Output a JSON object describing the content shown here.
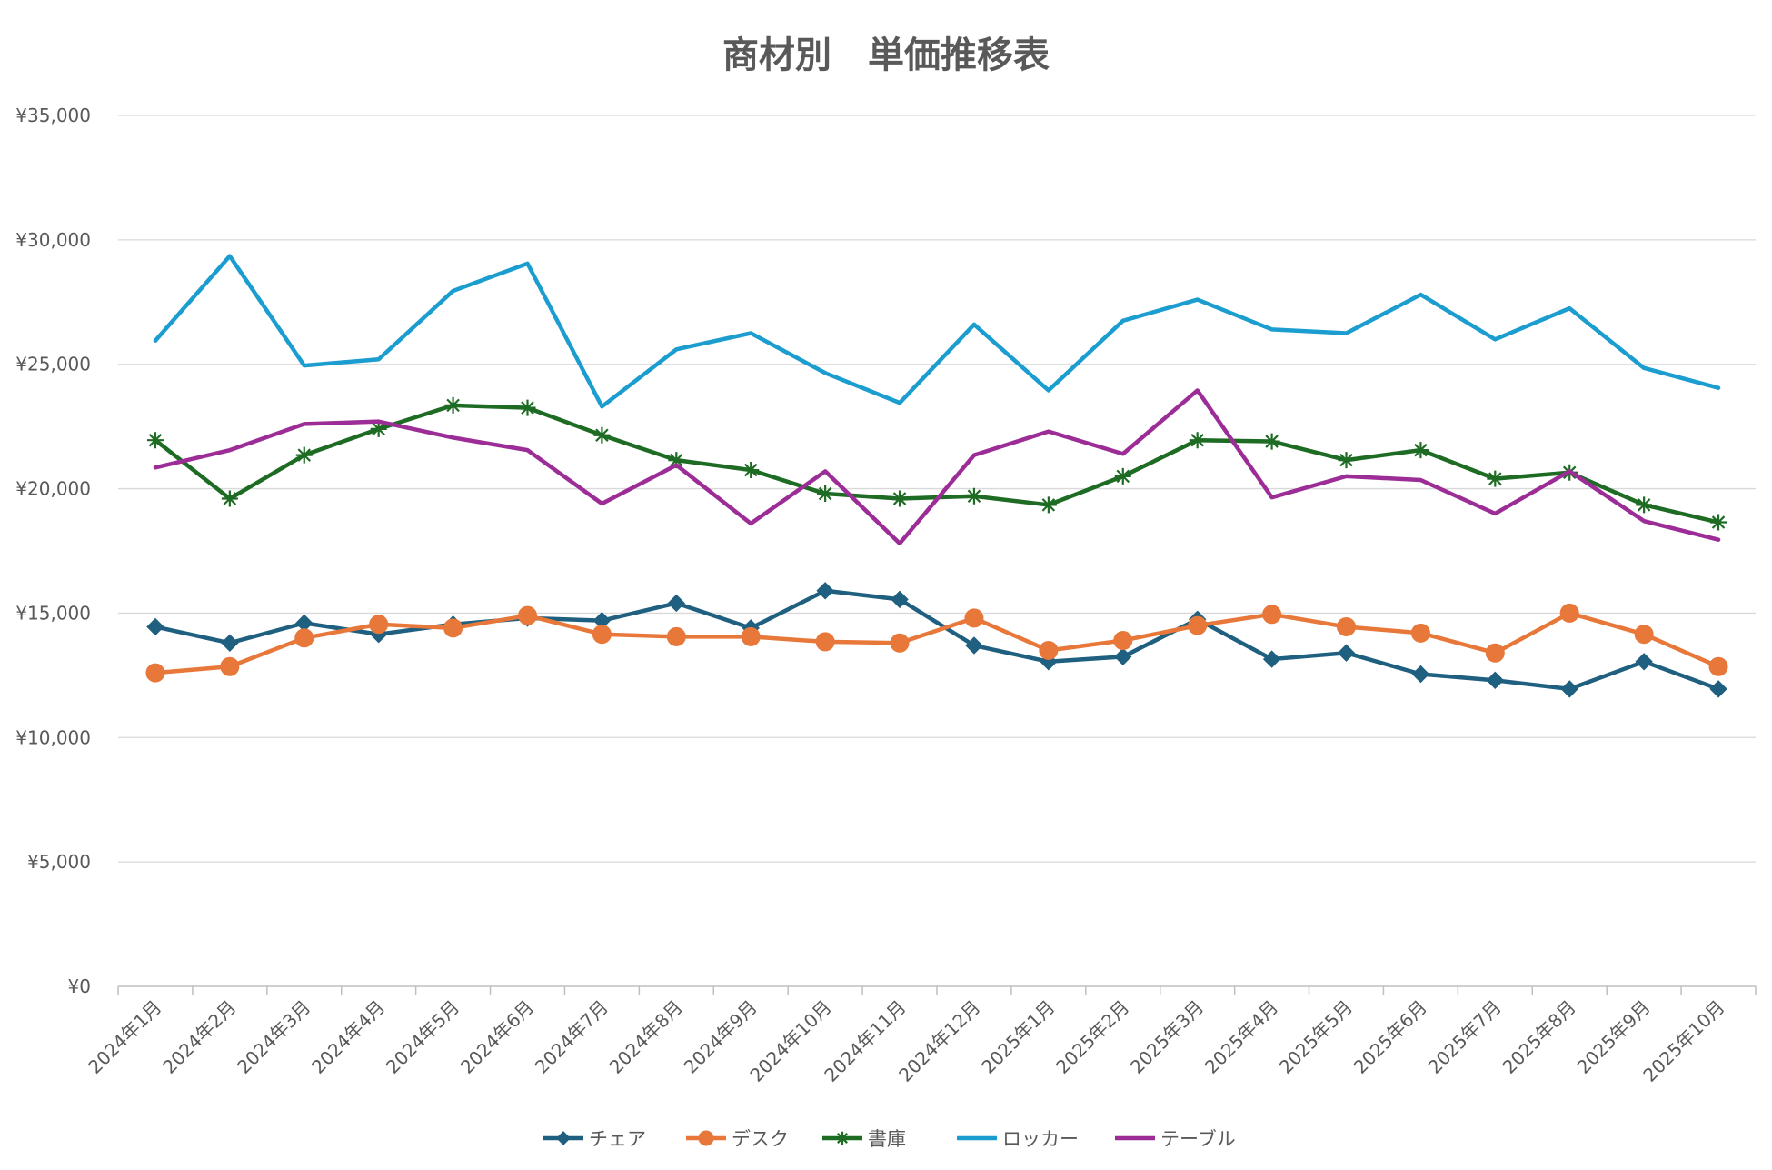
{
  "chart_data": {
    "type": "line",
    "title": "商材別　単価推移表",
    "xlabel": "",
    "ylabel": "",
    "categories": [
      "2024年1月",
      "2024年2月",
      "2024年3月",
      "2024年4月",
      "2024年5月",
      "2024年6月",
      "2024年7月",
      "2024年8月",
      "2024年9月",
      "2024年10月",
      "2024年11月",
      "2024年12月",
      "2025年1月",
      "2025年2月",
      "2025年3月",
      "2025年4月",
      "2025年5月",
      "2025年6月",
      "2025年7月",
      "2025年8月",
      "2025年9月",
      "2025年10月"
    ],
    "ylim": [
      0,
      35000
    ],
    "yticks": [
      0,
      5000,
      10000,
      15000,
      20000,
      25000,
      30000,
      35000
    ],
    "ytick_labels": [
      "¥0",
      "¥5,000",
      "¥10,000",
      "¥15,000",
      "¥20,000",
      "¥25,000",
      "¥30,000",
      "¥35,000"
    ],
    "grid": true,
    "legend_position": "bottom",
    "series": [
      {
        "name": "チェア",
        "color": "#1f5f7f",
        "marker": "diamond",
        "values": [
          14450,
          13800,
          14600,
          14150,
          14550,
          14800,
          14700,
          15400,
          14400,
          15900,
          15550,
          13700,
          13050,
          13250,
          14750,
          13150,
          13400,
          12550,
          12300,
          11950,
          13050,
          11950
        ]
      },
      {
        "name": "デスク",
        "color": "#e8773a",
        "marker": "circle",
        "values": [
          12600,
          12850,
          14000,
          14550,
          14400,
          14900,
          14150,
          14050,
          14050,
          13850,
          13800,
          14800,
          13500,
          13900,
          14500,
          14950,
          14450,
          14200,
          13400,
          15000,
          14150,
          12850
        ]
      },
      {
        "name": "書庫",
        "color": "#1e6b24",
        "marker": "star",
        "values": [
          21950,
          19600,
          21350,
          22400,
          23350,
          23250,
          22150,
          21150,
          20750,
          19800,
          19600,
          19700,
          19350,
          20500,
          21950,
          21900,
          21150,
          21550,
          20400,
          20650,
          19350,
          18650
        ]
      },
      {
        "name": "ロッカー",
        "color": "#1b9dd0",
        "marker": "none",
        "values": [
          25950,
          29350,
          24950,
          25200,
          27950,
          29050,
          23300,
          25600,
          26250,
          24650,
          23450,
          26600,
          23950,
          26750,
          27600,
          26400,
          26250,
          27800,
          26000,
          27250,
          24850,
          24050
        ]
      },
      {
        "name": "テーブル",
        "color": "#9c2d97",
        "marker": "none",
        "values": [
          20850,
          21550,
          22600,
          22700,
          22050,
          21550,
          19400,
          20950,
          18600,
          20700,
          17800,
          21350,
          22300,
          21400,
          23950,
          19650,
          20500,
          20350,
          19000,
          20700,
          18700,
          17950
        ]
      }
    ]
  }
}
